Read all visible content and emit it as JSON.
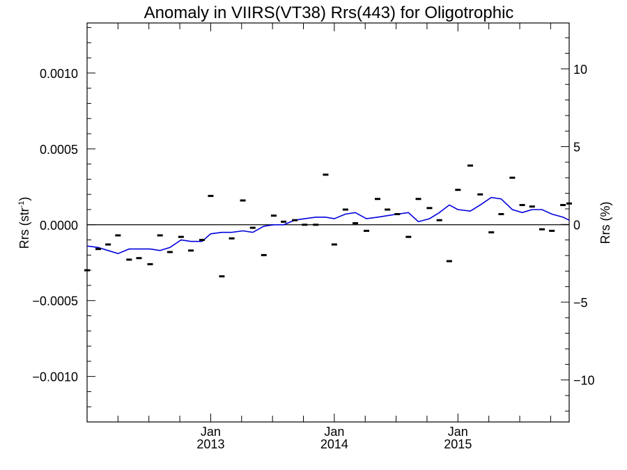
{
  "chart_data": {
    "type": "line",
    "title": "Anomaly in VIIRS(VT38) Rrs(443) for Oligotrophic",
    "ylabel_left": {
      "base": "Rrs (str",
      "sup": "-1",
      "close": ")"
    },
    "ylabel_right": "Rrs (%)",
    "xlabel": "",
    "xlim": [
      2012.0,
      2015.9
    ],
    "ylim_left": [
      -0.0013,
      0.00133
    ],
    "ylim_right": [
      -12.7,
      12.95
    ],
    "left_ticks": [
      {
        "value": 0.001,
        "label": "0.0010"
      },
      {
        "value": 0.0005,
        "label": "0.0005"
      },
      {
        "value": 0.0,
        "label": "0.0000"
      },
      {
        "value": -0.0005,
        "label": "−0.0005"
      },
      {
        "value": -0.001,
        "label": "−0.0010"
      }
    ],
    "right_ticks": [
      {
        "value": 10,
        "label": "10"
      },
      {
        "value": 5,
        "label": "5"
      },
      {
        "value": 0,
        "label": "0"
      },
      {
        "value": -5,
        "label": "−5"
      },
      {
        "value": -10,
        "label": "−10"
      }
    ],
    "x_ticks": [
      {
        "value": 2013.0,
        "month": "Jan",
        "year": "2013"
      },
      {
        "value": 2014.0,
        "month": "Jan",
        "year": "2014"
      },
      {
        "value": 2015.0,
        "month": "Jan",
        "year": "2015"
      }
    ],
    "zero_line": true,
    "series": [
      {
        "kind": "markers",
        "color": "#000000",
        "x": [
          2012.0,
          2012.09,
          2012.17,
          2012.25,
          2012.34,
          2012.42,
          2012.51,
          2012.59,
          2012.67,
          2012.76,
          2012.84,
          2012.93,
          2013.0,
          2013.09,
          2013.17,
          2013.26,
          2013.34,
          2013.43,
          2013.51,
          2013.59,
          2013.68,
          2013.76,
          2013.85,
          2013.93,
          2014.0,
          2014.09,
          2014.17,
          2014.26,
          2014.35,
          2014.43,
          2014.51,
          2014.6,
          2014.68,
          2014.77,
          2014.85,
          2014.93,
          2015.0,
          2015.1,
          2015.18,
          2015.27,
          2015.35,
          2015.44,
          2015.52,
          2015.6,
          2015.68,
          2015.76,
          2015.85,
          2015.9
        ],
        "y": [
          -0.0003,
          -0.00016,
          -0.00013,
          -7e-05,
          -0.00023,
          -0.00022,
          -0.00026,
          -7e-05,
          -0.00018,
          -8e-05,
          -0.00017,
          -0.0001,
          0.00019,
          -0.00034,
          -9e-05,
          0.00016,
          -2e-05,
          -0.0002,
          6e-05,
          2e-05,
          3e-05,
          0.0,
          0.0,
          0.00033,
          -0.00013,
          0.0001,
          1e-05,
          -4e-05,
          0.00017,
          0.0001,
          7e-05,
          -8e-05,
          0.00017,
          0.00011,
          3e-05,
          -0.00024,
          0.00023,
          0.00039,
          0.0002,
          -5e-05,
          7e-05,
          0.00031,
          0.00013,
          0.00012,
          -3e-05,
          -4e-05,
          0.00013,
          0.00014
        ]
      },
      {
        "kind": "line",
        "color": "#0000dd",
        "x": [
          2012.0,
          2012.09,
          2012.17,
          2012.25,
          2012.34,
          2012.42,
          2012.51,
          2012.59,
          2012.67,
          2012.76,
          2012.84,
          2012.93,
          2013.0,
          2013.09,
          2013.17,
          2013.26,
          2013.34,
          2013.43,
          2013.51,
          2013.59,
          2013.68,
          2013.76,
          2013.85,
          2013.93,
          2014.0,
          2014.09,
          2014.17,
          2014.26,
          2014.35,
          2014.43,
          2014.51,
          2014.6,
          2014.68,
          2014.77,
          2014.85,
          2014.93,
          2015.0,
          2015.1,
          2015.18,
          2015.27,
          2015.35,
          2015.44,
          2015.52,
          2015.6,
          2015.68,
          2015.76,
          2015.85,
          2015.9
        ],
        "y": [
          -0.00014,
          -0.00015,
          -0.00017,
          -0.00019,
          -0.00016,
          -0.00016,
          -0.00016,
          -0.00017,
          -0.00015,
          -0.0001,
          -0.00011,
          -0.00011,
          -6e-05,
          -5e-05,
          -5e-05,
          -4e-05,
          -5e-05,
          -1e-05,
          0.0,
          0.0,
          3e-05,
          4e-05,
          5e-05,
          5e-05,
          4e-05,
          7e-05,
          8e-05,
          4e-05,
          5e-05,
          6e-05,
          7e-05,
          8e-05,
          2e-05,
          4e-05,
          8e-05,
          0.00013,
          0.0001,
          9e-05,
          0.00013,
          0.00018,
          0.00017,
          0.0001,
          8e-05,
          0.0001,
          0.0001,
          7e-05,
          5e-05,
          3e-05
        ]
      }
    ]
  }
}
